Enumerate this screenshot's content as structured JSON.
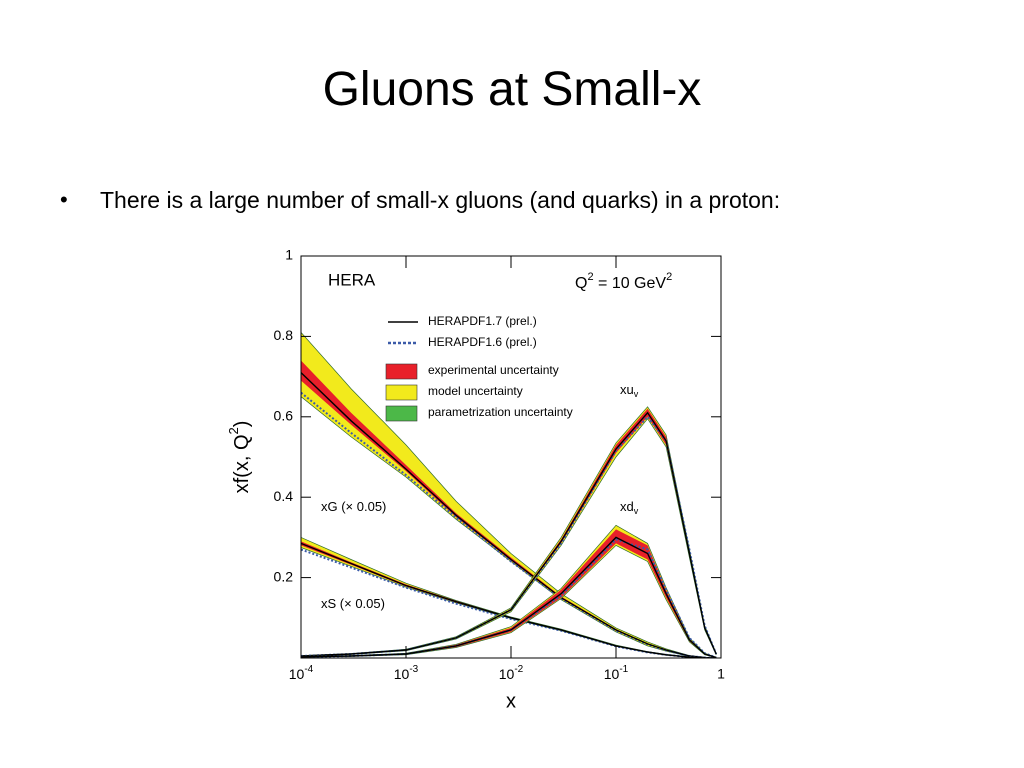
{
  "slide": {
    "title": "Gluons at Small-x",
    "bullet": "•",
    "text": "There is a large number of small-x gluons (and quarks) in a proton:"
  },
  "chart_data": {
    "type": "line",
    "log_x": true,
    "title": "HERA",
    "annotation": {
      "base": "Q",
      "sup": "2",
      "rest": " = 10 GeV",
      "sup2": "2"
    },
    "ylabel": {
      "base": "xf(x, Q",
      "sup": "2",
      "rest": ")"
    },
    "xlabel": "x",
    "xlim": [
      0.0001,
      1
    ],
    "ylim": [
      0,
      1
    ],
    "xticks": [
      {
        "value": 0.0001,
        "label": "10",
        "sup": "-4"
      },
      {
        "value": 0.001,
        "label": "10",
        "sup": "-3"
      },
      {
        "value": 0.01,
        "label": "10",
        "sup": "-2"
      },
      {
        "value": 0.1,
        "label": "10",
        "sup": "-1"
      },
      1
    ],
    "yticks": [
      0.2,
      0.4,
      0.6,
      0.8,
      1
    ],
    "lines": [
      {
        "name": "HERAPDF1.7 (prel.)",
        "color": "#000000",
        "dashed": false
      },
      {
        "name": "HERAPDF1.6 (prel.)",
        "color": "#3b5ba8",
        "dashed": true
      }
    ],
    "bands": [
      {
        "name": "experimental uncertainty",
        "color": "#e8202a"
      },
      {
        "name": "model uncertainty",
        "color": "#f2ea1c"
      },
      {
        "name": "parametrization uncertainty",
        "color": "#4cb848"
      }
    ],
    "x": [
      0.0001,
      0.0003,
      0.001,
      0.003,
      0.01,
      0.03,
      0.1,
      0.2,
      0.3,
      0.5,
      0.7,
      0.9
    ],
    "curves": [
      {
        "label": "xG (× 0.05)",
        "v17": [
          0.71,
          0.59,
          0.47,
          0.355,
          0.245,
          0.15,
          0.07,
          0.035,
          0.02,
          0.005,
          0.001,
          0
        ],
        "v16": [
          0.66,
          0.56,
          0.455,
          0.35,
          0.24,
          0.148,
          0.068,
          0.034,
          0.019,
          0.005,
          0.001,
          0
        ],
        "model_lower": [
          0.65,
          0.55,
          0.45,
          0.345,
          0.24,
          0.145,
          0.065,
          0.03,
          0.017,
          0.004,
          0.001,
          0
        ],
        "model_upper": [
          0.81,
          0.67,
          0.53,
          0.39,
          0.26,
          0.16,
          0.075,
          0.04,
          0.023,
          0.006,
          0.002,
          0
        ],
        "exp_lower": [
          0.69,
          0.58,
          0.465,
          0.35,
          0.242,
          0.148,
          0.068,
          0.034,
          0.019,
          0.005,
          0.001,
          0
        ],
        "exp_upper": [
          0.74,
          0.61,
          0.48,
          0.36,
          0.25,
          0.153,
          0.072,
          0.036,
          0.021,
          0.006,
          0.001,
          0
        ]
      },
      {
        "label": "xS (× 0.05)",
        "v17": [
          0.285,
          0.235,
          0.18,
          0.14,
          0.1,
          0.07,
          0.03,
          0.015,
          0.008,
          0.002,
          0,
          0
        ],
        "v16": [
          0.27,
          0.225,
          0.175,
          0.135,
          0.097,
          0.068,
          0.029,
          0.014,
          0.008,
          0.002,
          0,
          0
        ],
        "model_lower": [
          0.275,
          0.228,
          0.176,
          0.137,
          0.098,
          0.068,
          0.029,
          0.014,
          0.007,
          0.002,
          0,
          0
        ],
        "model_upper": [
          0.3,
          0.245,
          0.186,
          0.143,
          0.102,
          0.072,
          0.032,
          0.016,
          0.009,
          0.003,
          0,
          0
        ],
        "exp_lower": [
          0.28,
          0.232,
          0.178,
          0.138,
          0.099,
          0.069,
          0.029,
          0.014,
          0.008,
          0.002,
          0,
          0
        ],
        "exp_upper": [
          0.29,
          0.238,
          0.183,
          0.142,
          0.101,
          0.071,
          0.031,
          0.016,
          0.009,
          0.002,
          0,
          0
        ]
      },
      {
        "label": "xu",
        "sub": "v",
        "v17": [
          0.005,
          0.01,
          0.02,
          0.05,
          0.12,
          0.29,
          0.52,
          0.61,
          0.54,
          0.26,
          0.075,
          0.01
        ],
        "v16": [
          0.005,
          0.01,
          0.02,
          0.05,
          0.12,
          0.285,
          0.515,
          0.6,
          0.54,
          0.27,
          0.08,
          0.01
        ],
        "model_lower": [
          0.004,
          0.009,
          0.018,
          0.047,
          0.115,
          0.28,
          0.5,
          0.595,
          0.525,
          0.25,
          0.07,
          0.008
        ],
        "model_upper": [
          0.006,
          0.011,
          0.022,
          0.053,
          0.125,
          0.3,
          0.535,
          0.625,
          0.555,
          0.27,
          0.08,
          0.012
        ],
        "exp_lower": [
          0.005,
          0.01,
          0.019,
          0.049,
          0.118,
          0.285,
          0.51,
          0.6,
          0.53,
          0.255,
          0.073,
          0.009
        ],
        "exp_upper": [
          0.005,
          0.01,
          0.021,
          0.051,
          0.122,
          0.295,
          0.53,
          0.62,
          0.55,
          0.265,
          0.077,
          0.011
        ]
      },
      {
        "label": "xd",
        "sub": "v",
        "v17": [
          0.003,
          0.005,
          0.01,
          0.03,
          0.07,
          0.16,
          0.3,
          0.26,
          0.16,
          0.045,
          0.01,
          0.001
        ],
        "v16": [
          0.003,
          0.005,
          0.01,
          0.03,
          0.07,
          0.155,
          0.295,
          0.27,
          0.17,
          0.05,
          0.012,
          0.001
        ],
        "model_lower": [
          0.002,
          0.004,
          0.008,
          0.026,
          0.063,
          0.148,
          0.28,
          0.24,
          0.145,
          0.04,
          0.008,
          0.001
        ],
        "model_upper": [
          0.004,
          0.006,
          0.012,
          0.034,
          0.078,
          0.173,
          0.33,
          0.285,
          0.175,
          0.05,
          0.012,
          0.002
        ],
        "exp_lower": [
          0.002,
          0.004,
          0.009,
          0.027,
          0.065,
          0.15,
          0.285,
          0.245,
          0.15,
          0.042,
          0.009,
          0.001
        ],
        "exp_upper": [
          0.004,
          0.006,
          0.011,
          0.033,
          0.075,
          0.17,
          0.32,
          0.28,
          0.17,
          0.048,
          0.011,
          0.001
        ]
      }
    ]
  }
}
